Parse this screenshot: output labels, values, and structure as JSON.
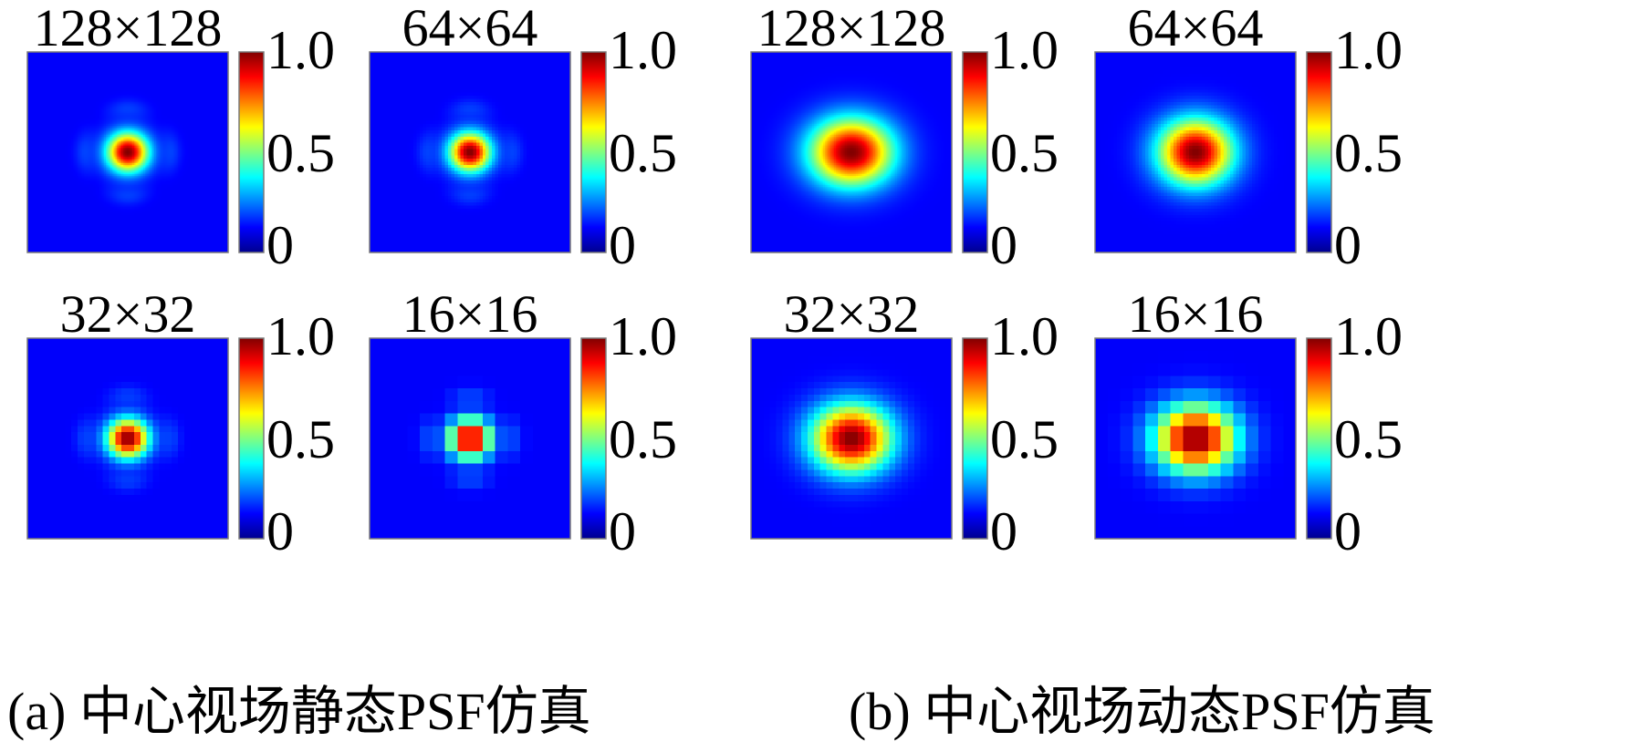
{
  "figure": {
    "captions": [
      "(a) 中心视场静态PSF仿真",
      "(b) 中心视场动态PSF仿真"
    ]
  },
  "colors": {
    "background": "#2a3b82",
    "colormap": [
      "#00008f",
      "#0000ff",
      "#0080ff",
      "#00ffff",
      "#80ff80",
      "#ffff00",
      "#ff8000",
      "#ff0000",
      "#800000"
    ]
  },
  "chart_data": [
    {
      "type": "heatmap",
      "title": "128×128",
      "group": "a",
      "grid": 128,
      "sigma_x": 0.072,
      "sigma_y": 0.068,
      "side_lobes": true,
      "colorbar": {
        "ticks": [
          "1.0",
          "0.5",
          "0"
        ],
        "range": [
          0,
          1
        ]
      }
    },
    {
      "type": "heatmap",
      "title": "64×64",
      "group": "a",
      "grid": 64,
      "sigma_x": 0.072,
      "sigma_y": 0.068,
      "side_lobes": true,
      "colorbar": {
        "ticks": [
          "1.0",
          "0.5",
          "0"
        ],
        "range": [
          0,
          1
        ]
      }
    },
    {
      "type": "heatmap",
      "title": "32×32",
      "group": "a",
      "grid": 32,
      "sigma_x": 0.072,
      "sigma_y": 0.068,
      "side_lobes": true,
      "colorbar": {
        "ticks": [
          "1.0",
          "0.5",
          "0"
        ],
        "range": [
          0,
          1
        ]
      }
    },
    {
      "type": "heatmap",
      "title": "16×16",
      "group": "a",
      "grid": 16,
      "sigma_x": 0.072,
      "sigma_y": 0.068,
      "side_lobes": true,
      "colorbar": {
        "ticks": [
          "1.0",
          "0.5",
          "0"
        ],
        "range": [
          0,
          1
        ]
      }
    },
    {
      "type": "heatmap",
      "title": "128×128",
      "group": "b",
      "grid": 128,
      "sigma_x": 0.145,
      "sigma_y": 0.118,
      "side_lobes": false,
      "colorbar": {
        "ticks": [
          "1.0",
          "0.5",
          "0"
        ],
        "range": [
          0,
          1
        ]
      }
    },
    {
      "type": "heatmap",
      "title": "64×64",
      "group": "b",
      "grid": 64,
      "sigma_x": 0.13,
      "sigma_y": 0.115,
      "side_lobes": false,
      "colorbar": {
        "ticks": [
          "1.0",
          "0.5",
          "0"
        ],
        "range": [
          0,
          1
        ]
      }
    },
    {
      "type": "heatmap",
      "title": "32×32",
      "group": "b",
      "grid": 32,
      "sigma_x": 0.14,
      "sigma_y": 0.118,
      "side_lobes": false,
      "colorbar": {
        "ticks": [
          "1.0",
          "0.5",
          "0"
        ],
        "range": [
          0,
          1
        ]
      }
    },
    {
      "type": "heatmap",
      "title": "16×16",
      "group": "b",
      "grid": 16,
      "sigma_x": 0.14,
      "sigma_y": 0.118,
      "side_lobes": false,
      "colorbar": {
        "ticks": [
          "1.0",
          "0.5",
          "0"
        ],
        "range": [
          0,
          1
        ]
      }
    }
  ]
}
